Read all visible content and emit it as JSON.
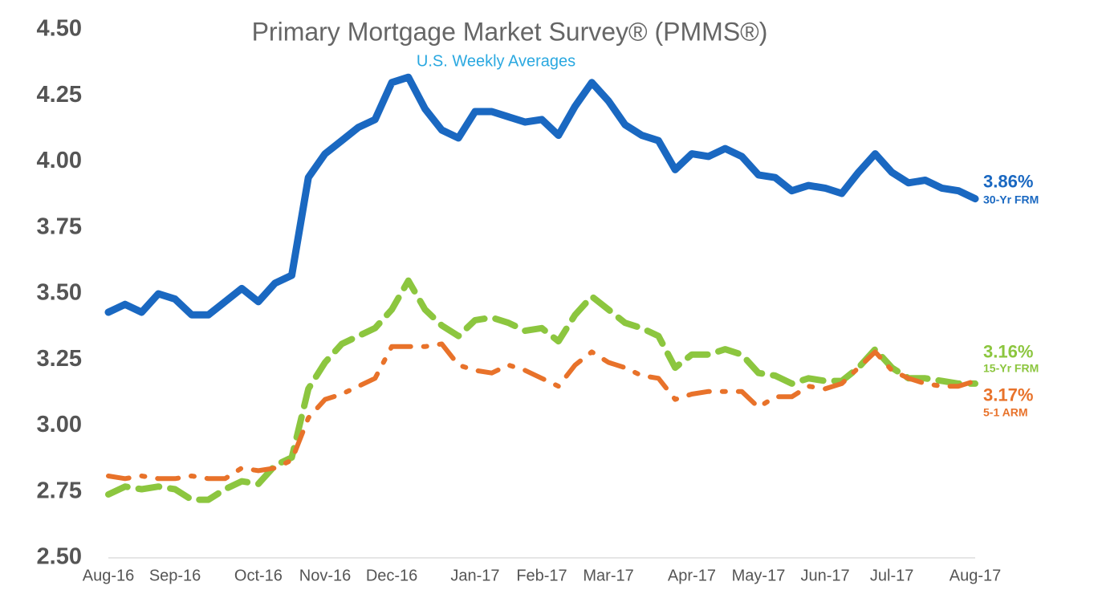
{
  "chart_data": {
    "type": "line",
    "title": "Primary Mortgage Market Survey® (PMMS®)",
    "subtitle": "U.S. Weekly Averages",
    "categories": [
      "Aug-16",
      null,
      null,
      null,
      "Sep-16",
      null,
      null,
      null,
      null,
      "Oct-16",
      null,
      null,
      null,
      "Nov-16",
      null,
      null,
      null,
      "Dec-16",
      null,
      null,
      null,
      null,
      "Jan-17",
      null,
      null,
      null,
      "Feb-17",
      null,
      null,
      null,
      "Mar-17",
      null,
      null,
      null,
      null,
      "Apr-17",
      null,
      null,
      null,
      "May-17",
      null,
      null,
      null,
      "Jun-17",
      null,
      null,
      null,
      "Jul-17",
      null,
      null,
      null,
      null,
      "Aug-17"
    ],
    "ylim": [
      2.5,
      4.5
    ],
    "yticks": [
      {
        "value": 2.5,
        "label": "2.50"
      },
      {
        "value": 2.75,
        "label": "2.75"
      },
      {
        "value": 3,
        "label": "3.00"
      },
      {
        "value": 3.25,
        "label": "3.25"
      },
      {
        "value": 3.5,
        "label": "3.50"
      },
      {
        "value": 3.75,
        "label": "3.75"
      },
      {
        "value": 4,
        "label": "4.00"
      },
      {
        "value": 4.25,
        "label": "4.25"
      },
      {
        "value": 4.5,
        "label": "4.50"
      }
    ],
    "grid": false,
    "series": [
      {
        "name": "30-Yr FRM",
        "color": "#1a68c1",
        "style": "solid",
        "values": [
          3.43,
          3.46,
          3.43,
          3.5,
          3.48,
          3.42,
          3.42,
          3.47,
          3.52,
          3.47,
          3.54,
          3.57,
          3.94,
          4.03,
          4.08,
          4.13,
          4.16,
          4.3,
          4.32,
          4.2,
          4.12,
          4.09,
          4.19,
          4.19,
          4.17,
          4.15,
          4.16,
          4.1,
          4.21,
          4.3,
          4.23,
          4.14,
          4.1,
          4.08,
          3.97,
          4.03,
          4.02,
          4.05,
          4.02,
          3.95,
          3.94,
          3.89,
          3.91,
          3.9,
          3.88,
          3.96,
          4.03,
          3.96,
          3.92,
          3.93,
          3.9,
          3.89,
          3.86
        ],
        "value_labels": [
          null,
          null,
          null,
          null,
          null,
          null,
          null,
          null,
          null,
          null,
          null,
          null,
          null,
          null,
          null,
          null,
          null,
          null,
          null,
          null,
          null,
          null,
          null,
          null,
          null,
          null,
          null,
          null,
          null,
          null,
          null,
          null,
          null,
          null,
          null,
          null,
          null,
          null,
          null,
          null,
          null,
          null,
          null,
          null,
          null,
          null,
          null,
          null,
          null,
          null,
          null,
          null,
          "3.86%"
        ]
      },
      {
        "name": "15-Yr FRM",
        "color": "#8cc63f",
        "style": "dashed",
        "values": [
          2.74,
          2.77,
          2.76,
          2.77,
          2.76,
          2.72,
          2.72,
          2.76,
          2.79,
          2.78,
          2.85,
          2.88,
          3.14,
          3.24,
          3.31,
          3.34,
          3.37,
          3.44,
          3.55,
          3.44,
          3.38,
          3.34,
          3.4,
          3.41,
          3.39,
          3.36,
          3.37,
          3.32,
          3.42,
          3.49,
          3.44,
          3.39,
          3.37,
          3.34,
          3.22,
          3.27,
          3.27,
          3.29,
          3.27,
          3.2,
          3.19,
          3.16,
          3.18,
          3.17,
          3.17,
          3.22,
          3.29,
          3.22,
          3.18,
          3.18,
          3.17,
          3.16,
          3.16
        ],
        "value_labels": [
          null,
          null,
          null,
          null,
          null,
          null,
          null,
          null,
          null,
          null,
          null,
          null,
          null,
          null,
          null,
          null,
          null,
          null,
          null,
          null,
          null,
          null,
          null,
          null,
          null,
          null,
          null,
          null,
          null,
          null,
          null,
          null,
          null,
          null,
          null,
          null,
          null,
          null,
          null,
          null,
          null,
          null,
          null,
          null,
          null,
          null,
          null,
          null,
          null,
          null,
          null,
          null,
          "3.16%"
        ]
      },
      {
        "name": "5-1 ARM",
        "color": "#e8722a",
        "style": "dashdot",
        "values": [
          2.81,
          2.8,
          2.81,
          2.8,
          2.8,
          2.81,
          2.8,
          2.8,
          2.84,
          2.83,
          2.84,
          2.87,
          3.03,
          3.1,
          3.12,
          3.15,
          3.18,
          3.3,
          3.3,
          3.3,
          3.31,
          3.23,
          3.21,
          3.2,
          3.23,
          3.21,
          3.18,
          3.15,
          3.23,
          3.28,
          3.24,
          3.22,
          3.19,
          3.18,
          3.1,
          3.12,
          3.13,
          3.13,
          3.13,
          3.07,
          3.11,
          3.11,
          3.15,
          3.14,
          3.16,
          3.22,
          3.28,
          3.21,
          3.18,
          3.16,
          3.15,
          3.15,
          3.17
        ],
        "value_labels": [
          null,
          null,
          null,
          null,
          null,
          null,
          null,
          null,
          null,
          null,
          null,
          null,
          null,
          null,
          null,
          null,
          null,
          null,
          null,
          null,
          null,
          null,
          null,
          null,
          null,
          null,
          null,
          null,
          null,
          null,
          null,
          null,
          null,
          null,
          null,
          null,
          null,
          null,
          null,
          null,
          null,
          null,
          null,
          null,
          null,
          null,
          null,
          null,
          null,
          null,
          null,
          null,
          "3.17%"
        ]
      }
    ]
  }
}
